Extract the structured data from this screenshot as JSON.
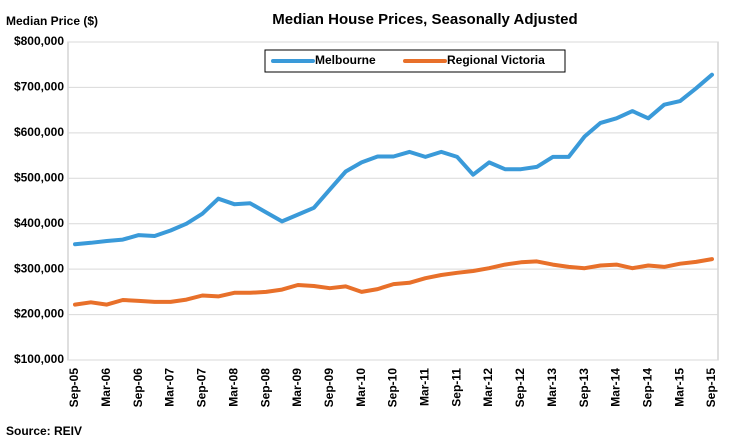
{
  "chart_data": {
    "type": "line",
    "title": "Median House Prices, Seasonally Adjusted",
    "y_axis_label": "Median Price ($)",
    "source": "Source:  REIV",
    "categories": [
      "Sep-05",
      null,
      "Mar-06",
      null,
      "Sep-06",
      null,
      "Mar-07",
      null,
      "Sep-07",
      null,
      "Mar-08",
      null,
      "Sep-08",
      null,
      "Mar-09",
      null,
      "Sep-09",
      null,
      "Mar-10",
      null,
      "Sep-10",
      null,
      "Mar-11",
      null,
      "Sep-11",
      null,
      "Mar-12",
      null,
      "Sep-12",
      null,
      "Mar-13",
      null,
      "Sep-13",
      null,
      "Mar-14",
      null,
      "Sep-14",
      null,
      "Mar-15",
      null,
      "Sep-15"
    ],
    "series": [
      {
        "name": "Melbourne",
        "color": "#3a9ad9",
        "values": [
          355000,
          358000,
          362000,
          365000,
          375000,
          373000,
          385000,
          400000,
          422000,
          455000,
          443000,
          445000,
          425000,
          405000,
          420000,
          435000,
          475000,
          515000,
          535000,
          548000,
          548000,
          558000,
          547000,
          558000,
          547000,
          508000,
          535000,
          520000,
          520000,
          525000,
          547000,
          547000,
          592000,
          622000,
          632000,
          648000,
          632000,
          662000,
          670000,
          698000,
          728000
        ]
      },
      {
        "name": "Regional Victoria",
        "color": "#e8702a",
        "values": [
          222000,
          227000,
          222000,
          232000,
          230000,
          228000,
          228000,
          233000,
          242000,
          240000,
          248000,
          248000,
          250000,
          255000,
          265000,
          263000,
          258000,
          262000,
          250000,
          256000,
          267000,
          270000,
          280000,
          287000,
          292000,
          296000,
          302000,
          310000,
          315000,
          317000,
          310000,
          305000,
          302000,
          308000,
          310000,
          302000,
          308000,
          305000,
          312000,
          316000,
          322000
        ]
      }
    ],
    "ylim": [
      100000,
      800000
    ],
    "yticks": [
      {
        "value": 100000,
        "label": "$100,000"
      },
      {
        "value": 200000,
        "label": "$200,000"
      },
      {
        "value": 300000,
        "label": "$300,000"
      },
      {
        "value": 400000,
        "label": "$400,000"
      },
      {
        "value": 500000,
        "label": "$500,000"
      },
      {
        "value": 600000,
        "label": "$600,000"
      },
      {
        "value": 700000,
        "label": "$700,000"
      },
      {
        "value": 800000,
        "label": "$800,000"
      }
    ],
    "grid": true,
    "legend": "top"
  }
}
